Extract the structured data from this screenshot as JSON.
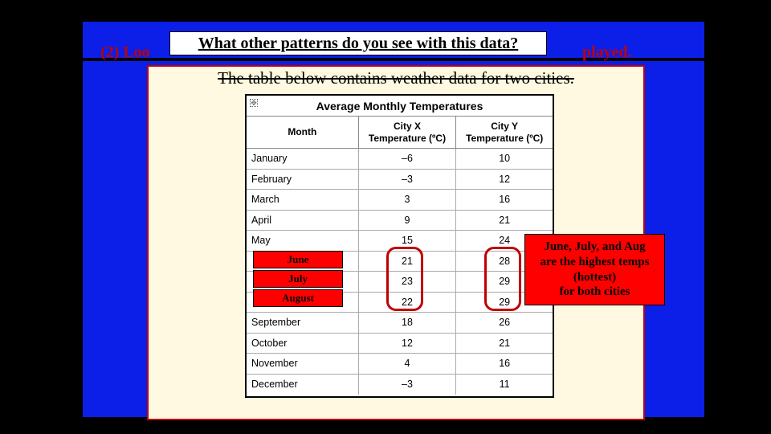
{
  "redLineLeft": "(2) Loo",
  "redLineRight": "played.",
  "question": "What other patterns do you see with this data?",
  "creamTitleStrike": "The table below contains weather data for two cities.",
  "table": {
    "title": "Average Monthly Temperatures",
    "columns": [
      "Month",
      "City X\nTemperature (ºC)",
      "City Y\nTemperature (ºC)"
    ],
    "rows": [
      [
        "January",
        "–6",
        "10"
      ],
      [
        "February",
        "–3",
        "12"
      ],
      [
        "March",
        "3",
        "16"
      ],
      [
        "April",
        "9",
        "21"
      ],
      [
        "May",
        "15",
        "24"
      ],
      [
        "",
        "21",
        "28"
      ],
      [
        "",
        "23",
        "29"
      ],
      [
        "",
        "22",
        "29"
      ],
      [
        "September",
        "18",
        "26"
      ],
      [
        "October",
        "12",
        "21"
      ],
      [
        "November",
        "4",
        "16"
      ],
      [
        "December",
        "–3",
        "11"
      ]
    ]
  },
  "monthCovers": [
    "June",
    "July",
    "August"
  ],
  "annotation": "June, July, and Aug\nare the highest temps\n(hottest)\nfor both cities",
  "colors": {
    "blue": "#0b1fe8",
    "red": "#ff0000",
    "darkRed": "#c00000",
    "cream": "#fef9e0"
  }
}
